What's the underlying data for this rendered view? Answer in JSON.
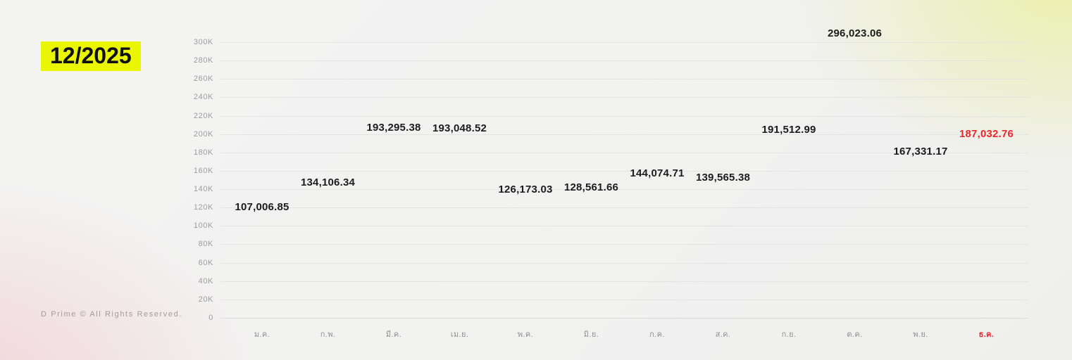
{
  "header": {
    "period_badge": "12/2025"
  },
  "footer": {
    "copyright": "D Prime © All Rights Reserved."
  },
  "colors": {
    "badge_background": "#eaf600",
    "badge_text": "#101010",
    "bar_gray": "#bdbdbd",
    "highlight_red": "#e8262d",
    "highlight_gradient_top": "#ffd93b",
    "highlight_gradient_mid": "#f05325",
    "highlight_gradient_bottom": "#c4262b",
    "grid_line": "#e4e4e3",
    "tick_text": "#9c9c9c",
    "value_text": "#1c1c1c"
  },
  "chart_data": {
    "type": "bar",
    "title": "12/2025",
    "xlabel": "",
    "ylabel": "",
    "categories": [
      "ม.ค.",
      "ก.พ.",
      "มี.ค.",
      "เม.ย.",
      "พ.ค.",
      "มิ.ย.",
      "ก.ค.",
      "ส.ค.",
      "ก.ย.",
      "ต.ค.",
      "พ.ย.",
      "ธ.ค."
    ],
    "values": [
      107006.85,
      134106.34,
      193295.38,
      193048.52,
      126173.03,
      128561.66,
      144074.71,
      139565.38,
      191512.99,
      296023.06,
      167331.17,
      187032.76
    ],
    "value_labels": [
      "107,006.85",
      "134,106.34",
      "193,295.38",
      "193,048.52",
      "126,173.03",
      "128,561.66",
      "144,074.71",
      "139,565.38",
      "191,512.99",
      "296,023.06",
      "167,331.17",
      "187,032.76"
    ],
    "highlight": {
      "index": 11,
      "color": "#e8262d"
    },
    "ylim": [
      0,
      300000
    ],
    "ytick_step": 20000,
    "ytick_labels": [
      "0",
      "20K",
      "40K",
      "60K",
      "80K",
      "100K",
      "120K",
      "140K",
      "160K",
      "180K",
      "200K",
      "220K",
      "240K",
      "260K",
      "280K",
      "300K"
    ],
    "grid": true,
    "legend": false
  }
}
